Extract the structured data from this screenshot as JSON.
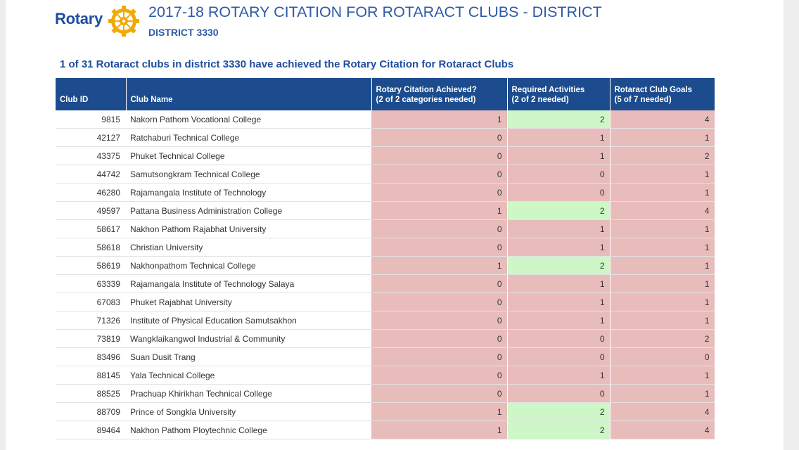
{
  "header": {
    "logo_text": "Rotary",
    "title": "2017-18 ROTARY CITATION FOR ROTARACT CLUBS - DISTRICT",
    "subtitle": "DISTRICT 3330",
    "summary": "1 of 31 Rotaract clubs in district 3330  have achieved the Rotary Citation for Rotaract Clubs"
  },
  "colors": {
    "header_bg": "#1c4c8e",
    "not_met": "#e9bcbc",
    "met": "#cdf7c7",
    "title": "#2e5aa8"
  },
  "table": {
    "columns": {
      "club_id": "Club ID",
      "club_name": "Club Name",
      "citation_line1": "Rotary Citation Achieved?",
      "citation_line2": "(2 of 2 categories needed)",
      "activities_line1": "Required Activities",
      "activities_line2": "(2 of 2 needed)",
      "goals_line1": "Rotaract Club Goals",
      "goals_line2": "(5 of 7 needed)"
    },
    "rows": [
      {
        "id": "9815",
        "name": "Nakorn Pathom Vocational College",
        "citation": "1",
        "activities": "2",
        "goals": "4"
      },
      {
        "id": "42127",
        "name": "Ratchaburi Technical College",
        "citation": "0",
        "activities": "1",
        "goals": "1"
      },
      {
        "id": "43375",
        "name": "Phuket Technical College",
        "citation": "0",
        "activities": "1",
        "goals": "2"
      },
      {
        "id": "44742",
        "name": "Samutsongkram Technical College",
        "citation": "0",
        "activities": "0",
        "goals": "1"
      },
      {
        "id": "46280",
        "name": "Rajamangala Institute of Technology",
        "citation": "0",
        "activities": "0",
        "goals": "1"
      },
      {
        "id": "49597",
        "name": "Pattana Business Administration College",
        "citation": "1",
        "activities": "2",
        "goals": "4"
      },
      {
        "id": "58617",
        "name": "Nakhon Pathom Rajabhat University",
        "citation": "0",
        "activities": "1",
        "goals": "1"
      },
      {
        "id": "58618",
        "name": "Christian University",
        "citation": "0",
        "activities": "1",
        "goals": "1"
      },
      {
        "id": "58619",
        "name": "Nakhonpathom Technical College",
        "citation": "1",
        "activities": "2",
        "goals": "1"
      },
      {
        "id": "63339",
        "name": "Rajamangala Institute of Technology Salaya",
        "citation": "0",
        "activities": "1",
        "goals": "1"
      },
      {
        "id": "67083",
        "name": "Phuket Rajabhat University",
        "citation": "0",
        "activities": "1",
        "goals": "1"
      },
      {
        "id": "71326",
        "name": "Institute of Physical Education Samutsakhon",
        "citation": "0",
        "activities": "1",
        "goals": "1"
      },
      {
        "id": "73819",
        "name": "Wangklaikangwol Industrial & Community",
        "citation": "0",
        "activities": "0",
        "goals": "2"
      },
      {
        "id": "83496",
        "name": "Suan Dusit Trang",
        "citation": "0",
        "activities": "0",
        "goals": "0"
      },
      {
        "id": "88145",
        "name": "Yala Technical College",
        "citation": "0",
        "activities": "1",
        "goals": "1"
      },
      {
        "id": "88525",
        "name": "Prachuap Khirikhan Technical College",
        "citation": "0",
        "activities": "0",
        "goals": "1"
      },
      {
        "id": "88709",
        "name": "Prince of Songkla University",
        "citation": "1",
        "activities": "2",
        "goals": "4"
      },
      {
        "id": "89464",
        "name": "Nakhon Pathom Ploytechnic College",
        "citation": "1",
        "activities": "2",
        "goals": "4"
      }
    ]
  }
}
